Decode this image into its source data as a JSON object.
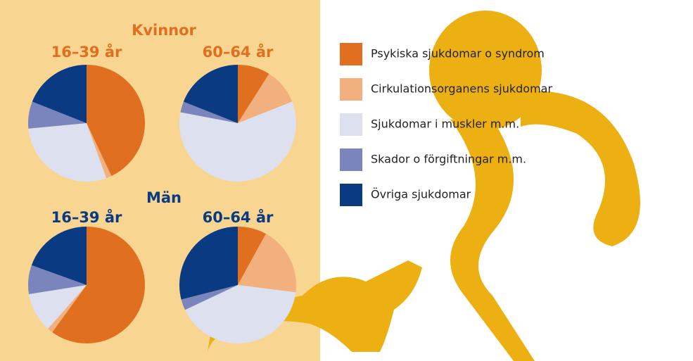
{
  "groups": [
    "Kvinnor",
    "Män"
  ],
  "chart_data": [
    {
      "type": "pie",
      "title": "16–39 år",
      "categories": [
        "Psykiska sjukdomar o syndrom",
        "Cirkulationsorganens sjukdomar",
        "Sjukdomar i muskler m.m.",
        "Skador o förgiftningar m.m.",
        "Övriga sjukdomar"
      ],
      "values": [
        43,
        1.5,
        29,
        7.5,
        19
      ],
      "colors": [
        "#e07020",
        "#f2b07e",
        "#dde0ee",
        "#7b85bd",
        "#0a3a82"
      ]
    },
    {
      "type": "pie",
      "title": "60–64 år",
      "categories": [
        "Psykiska sjukdomar o syndrom",
        "Cirkulationsorganens sjukdomar",
        "Sjukdomar i muskler m.m.",
        "Skador o förgiftningar m.m.",
        "Övriga sjukdomar"
      ],
      "values": [
        9,
        10,
        59,
        3,
        19
      ],
      "colors": [
        "#e07020",
        "#f2b07e",
        "#dde0ee",
        "#7b85bd",
        "#0a3a82"
      ]
    },
    {
      "type": "pie",
      "title": "16–39 år",
      "categories": [
        "Psykiska sjukdomar o syndrom",
        "Cirkulationsorganens sjukdomar",
        "Sjukdomar i muskler m.m.",
        "Skador o förgiftningar m.m.",
        "Övriga sjukdomar"
      ],
      "values": [
        60,
        1.5,
        11,
        8,
        19.5
      ],
      "colors": [
        "#e07020",
        "#f2b07e",
        "#dde0ee",
        "#7b85bd",
        "#0a3a82"
      ]
    },
    {
      "type": "pie",
      "title": "60–64 år",
      "categories": [
        "Psykiska sjukdomar o syndrom",
        "Cirkulationsorganens sjukdomar",
        "Sjukdomar i muskler m.m.",
        "Skador o förgiftningar m.m.",
        "Övriga sjukdomar"
      ],
      "values": [
        8,
        19,
        41,
        3,
        29
      ],
      "colors": [
        "#e07020",
        "#f2b07e",
        "#dde0ee",
        "#7b85bd",
        "#0a3a82"
      ]
    }
  ]
}
